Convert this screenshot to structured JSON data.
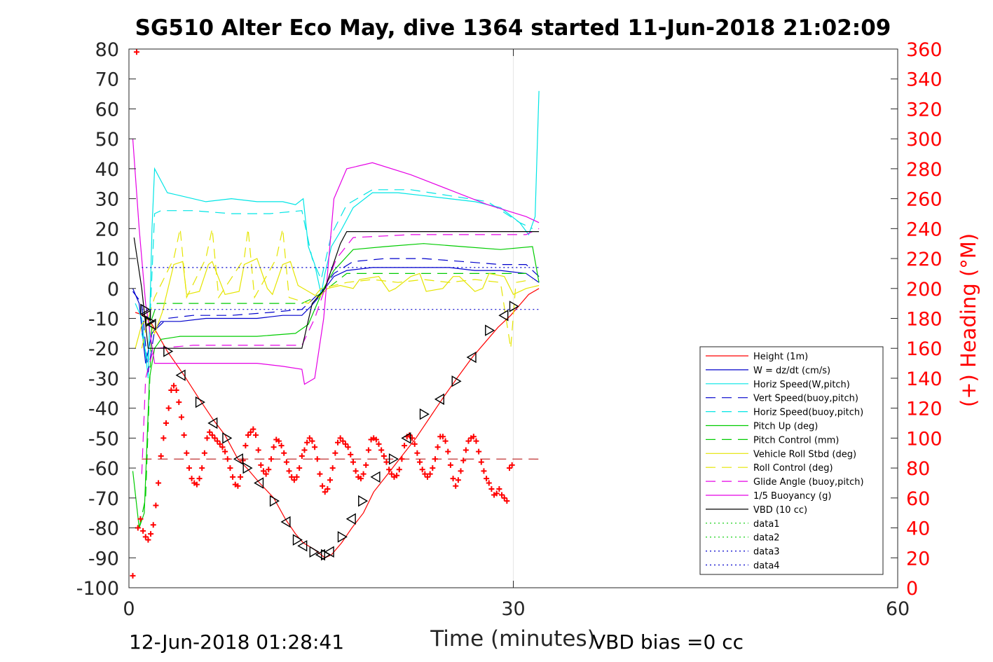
{
  "chart_data": {
    "type": "line",
    "title": "SG510 Alter Eco May, dive 1364 started 11-Jun-2018 21:02:09",
    "xlabel": "Time (minutes)",
    "ylabel": "",
    "y2label": "(+) Heading (°M)",
    "xlim": [
      0,
      60
    ],
    "ylim": [
      -100,
      80
    ],
    "y2lim": [
      0,
      360
    ],
    "xticks": [
      "0",
      "30",
      "60"
    ],
    "yticks": [
      "80",
      "70",
      "60",
      "50",
      "40",
      "30",
      "20",
      "10",
      "0",
      "-10",
      "-20",
      "-30",
      "-40",
      "-50",
      "-60",
      "-70",
      "-80",
      "-90",
      "-100"
    ],
    "y2ticks": [
      "360",
      "340",
      "320",
      "300",
      "280",
      "260",
      "240",
      "220",
      "200",
      "180",
      "160",
      "140",
      "120",
      "100",
      "80",
      "60",
      "40",
      "20",
      "0"
    ],
    "grid": "x-only",
    "legend_position": "lower-right",
    "end_time_text": "12-Jun-2018 01:28:41",
    "vbd_bias_text": "VBD bias =0 cc",
    "series": [
      {
        "name": "Height (1m)",
        "color": "#ff0000",
        "style": "solid",
        "x": [
          0.5,
          1.2,
          1.8,
          3,
          4.3,
          5.5,
          6.6,
          7.5,
          8.5,
          9.2,
          10.2,
          11.3,
          12.2,
          13,
          13.6,
          14.4,
          15,
          15.3,
          15.8,
          16.6,
          17.4,
          18.3,
          19.1,
          20.2,
          21.3,
          22.4,
          23.5,
          24.6,
          25.6,
          26.8,
          27.8,
          28.8,
          29.8,
          30.4,
          31.2,
          32
        ],
        "y": [
          -8,
          -9,
          -12,
          -21,
          -29,
          -37,
          -44,
          -49,
          -57,
          -60,
          -65,
          -70,
          -77,
          -82,
          -85,
          -87,
          -89,
          -90,
          -89,
          -85,
          -80,
          -75,
          -68,
          -62,
          -56,
          -50,
          -43,
          -36,
          -30,
          -23,
          -18,
          -13,
          -9,
          -6,
          -2,
          0
        ]
      },
      {
        "name": "W = dz/dt (cm/s)",
        "color": "#0000cc",
        "style": "solid",
        "x": [
          0.3,
          0.8,
          1.3,
          1.8,
          2.5,
          4,
          6,
          8,
          10,
          12,
          13.5,
          14.2,
          14.8,
          15.3,
          16,
          17,
          19,
          21,
          23,
          25,
          27,
          29,
          31,
          32
        ],
        "y": [
          0,
          -5,
          -25,
          -15,
          -11,
          -11,
          -10,
          -10,
          -10,
          -9,
          -9,
          -6,
          -3,
          0,
          4,
          6,
          7,
          7,
          7,
          7,
          6,
          6,
          5,
          2
        ]
      },
      {
        "name": "Horiz Speed(W,pitch)",
        "color": "#00e5e5",
        "style": "solid",
        "x": [
          0.5,
          1,
          1.5,
          1.8,
          2,
          2.5,
          3,
          4,
          6,
          8,
          10,
          12,
          13,
          13.6,
          14,
          14.5,
          15,
          15.3,
          15.8,
          16.5,
          17.5,
          19,
          21,
          23,
          25,
          27,
          29,
          30.5,
          31.2,
          31.7,
          32
        ],
        "y": [
          -5,
          -10,
          -30,
          20,
          40,
          36,
          32,
          31,
          29,
          30,
          29,
          29,
          28,
          30,
          14,
          8,
          -2,
          5,
          14,
          19,
          27,
          32,
          32,
          31,
          30,
          29,
          27,
          22,
          18,
          24,
          66
        ]
      },
      {
        "name": "Vert Speed(buoy,pitch)",
        "color": "#0000cc",
        "style": "dashed",
        "x": [
          0.3,
          1,
          1.5,
          2,
          3,
          5,
          8,
          11,
          13.5,
          14.5,
          15.2,
          16,
          17.5,
          20,
          23,
          26,
          29,
          31,
          32
        ],
        "y": [
          -1,
          -5,
          -28,
          -14,
          -10,
          -9,
          -9,
          -8,
          -7,
          -3,
          0,
          5,
          9,
          10,
          10,
          9,
          8,
          8,
          4
        ]
      },
      {
        "name": "Horiz Speed(buoy,pitch)",
        "color": "#00e5e5",
        "style": "dashed",
        "x": [
          1,
          1.5,
          2,
          2.5,
          5,
          8,
          11,
          13.5,
          14.3,
          15,
          15.8,
          17,
          19,
          22,
          25,
          28,
          30.5,
          31.5
        ],
        "y": [
          -15,
          -25,
          25,
          26,
          26,
          25,
          25,
          26,
          10,
          3,
          18,
          28,
          33,
          33,
          31,
          29,
          22,
          20
        ]
      },
      {
        "name": "Pitch Up (deg)",
        "color": "#00cc00",
        "style": "solid",
        "x": [
          0.3,
          0.8,
          1.2,
          1.6,
          2,
          2.5,
          4,
          7,
          10,
          13,
          14,
          14.6,
          15.2,
          16,
          17.5,
          20,
          23,
          26,
          29,
          31.5,
          32
        ],
        "y": [
          -61,
          -80,
          -75,
          -30,
          -20,
          -17,
          -16,
          -16,
          -16,
          -15,
          -12,
          -6,
          0,
          6,
          13,
          14,
          15,
          14,
          13,
          14,
          2
        ]
      },
      {
        "name": "Pitch Control (mm)",
        "color": "#00cc00",
        "style": "dashed",
        "x": [
          0.8,
          1.3,
          1.8,
          2.2,
          5,
          10,
          13.5,
          14.5,
          15.5,
          17,
          22,
          27,
          31
        ],
        "y": [
          -80,
          -70,
          -10,
          -5,
          -5,
          -5,
          -5,
          -3,
          0,
          5,
          5,
          5,
          5
        ]
      },
      {
        "name": "Vehicle Roll Stbd (deg)",
        "color": "#e5e500",
        "style": "solid",
        "x": [
          0.5,
          1,
          1.5,
          2,
          2.6,
          3.5,
          4.2,
          4.5,
          5.5,
          6.2,
          6.5,
          7.5,
          8.6,
          9,
          10,
          10.8,
          11.2,
          12,
          12.6,
          13.2,
          14,
          14.8,
          15.5,
          16.5,
          17.5,
          18,
          19.5,
          20.3,
          20.8,
          22,
          22.7,
          23.2,
          24.5,
          25.3,
          25.8,
          27,
          27.6,
          28.1,
          29.3,
          30,
          31,
          32
        ],
        "y": [
          -20,
          -12,
          -10,
          -15,
          -8,
          8,
          9,
          -2,
          -1,
          8,
          9,
          -2,
          -1,
          8,
          10,
          0,
          -2,
          8,
          9,
          1,
          -1,
          -3,
          0,
          1,
          0,
          3,
          4,
          -1,
          0,
          4,
          5,
          -1,
          0,
          4,
          4,
          -1,
          0,
          5,
          4,
          -2,
          0,
          1
        ]
      },
      {
        "name": "Roll Control (deg)",
        "color": "#e5e500",
        "style": "dashed",
        "x": [
          1,
          1.5,
          2,
          3.5,
          4,
          4.5,
          6,
          6.5,
          7,
          9,
          9.3,
          9.8,
          11.5,
          12,
          12.5,
          14,
          15,
          17,
          19,
          21,
          23,
          25,
          27,
          29,
          29.8,
          30.2,
          31.5
        ],
        "y": [
          -20,
          -10,
          -3,
          10,
          20,
          -3,
          10,
          20,
          -3,
          10,
          20,
          -3,
          10,
          20,
          -3,
          -5,
          0,
          2,
          3,
          2,
          3,
          2,
          3,
          2,
          -20,
          2,
          3
        ]
      },
      {
        "name": "Glide Angle (buoy,pitch)",
        "color": "#e500e5",
        "style": "dashed",
        "x": [
          1,
          1.3,
          1.8,
          2.2,
          5,
          10,
          13.5,
          14.5,
          15.3,
          16.2,
          17.5,
          22,
          27,
          31,
          32
        ],
        "y": [
          -62,
          -30,
          -22,
          -20,
          -19,
          -19,
          -19,
          -10,
          0,
          10,
          17,
          18,
          18,
          18,
          20
        ]
      },
      {
        "name": "1/5 Buoyancy (g)",
        "color": "#e500e5",
        "style": "solid",
        "x": [
          0.3,
          0.8,
          1.3,
          2,
          3,
          6,
          10,
          12,
          13.5,
          13.7,
          14.5,
          15.2,
          16,
          17,
          19,
          22,
          25,
          28,
          31,
          32
        ],
        "y": [
          50,
          20,
          -5,
          -25,
          -25,
          -25,
          -25,
          -26,
          -27,
          -32,
          -30,
          -10,
          30,
          40,
          42,
          38,
          33,
          28,
          24,
          22
        ]
      },
      {
        "name": "VBD (10 cc)",
        "color": "#000000",
        "style": "solid",
        "x": [
          0.4,
          1,
          1.5,
          2.2,
          13.5,
          14.3,
          15.3,
          16.5,
          17,
          31.5,
          32
        ],
        "y": [
          17,
          0,
          -20,
          -20,
          -20,
          -5,
          0,
          15,
          19,
          19,
          19
        ]
      },
      {
        "name": "data1",
        "color": "#00cc00",
        "style": "dotted",
        "x": [],
        "y": []
      },
      {
        "name": "data2",
        "color": "#00cc00",
        "style": "dotted",
        "x": [],
        "y": []
      },
      {
        "name": "data3",
        "color": "#0000cc",
        "style": "dotted",
        "x": [
          1,
          32
        ],
        "y": [
          7,
          7
        ]
      },
      {
        "name": "data4",
        "color": "#0000cc",
        "style": "dotted",
        "x": [
          1,
          32
        ],
        "y": [
          -7,
          -7
        ]
      }
    ],
    "heading_marker": {
      "color": "#ff0000",
      "dashed_line_y2": 86,
      "dashed_line_x": [
        1,
        32
      ]
    },
    "heading_points": {
      "x": [
        0.3,
        0.6,
        0.7,
        0.9,
        1.1,
        1.3,
        1.5,
        1.7,
        1.9,
        2.1,
        2.3,
        2.5,
        2.7,
        2.9,
        3.1,
        3.3,
        3.5,
        3.7,
        3.9,
        4.1,
        4.3,
        4.5,
        4.7,
        4.9,
        5.1,
        5.3,
        5.5,
        5.7,
        5.9,
        6.1,
        6.3,
        6.5,
        6.7,
        6.9,
        7.1,
        7.3,
        7.5,
        7.7,
        7.9,
        8.1,
        8.3,
        8.5,
        8.7,
        8.9,
        9.1,
        9.3,
        9.5,
        9.7,
        9.9,
        10.1,
        10.3,
        10.5,
        10.7,
        10.9,
        11.1,
        11.3,
        11.5,
        11.7,
        11.9,
        12.1,
        12.3,
        12.5,
        12.7,
        12.9,
        13.1,
        13.3,
        13.5,
        13.7,
        13.9,
        14.1,
        14.3,
        14.5,
        14.7,
        14.9,
        15.1,
        15.3,
        15.5,
        15.7,
        15.9,
        16.1,
        16.3,
        16.5,
        16.7,
        16.9,
        17.1,
        17.3,
        17.5,
        17.7,
        17.9,
        18.1,
        18.3,
        18.5,
        18.7,
        18.9,
        19.1,
        19.3,
        19.5,
        19.7,
        19.9,
        20.1,
        20.3,
        20.5,
        20.7,
        20.9,
        21.1,
        21.3,
        21.5,
        21.7,
        21.9,
        22.1,
        22.3,
        22.5,
        22.7,
        22.9,
        23.1,
        23.3,
        23.5,
        23.7,
        23.9,
        24.1,
        24.3,
        24.5,
        24.7,
        24.9,
        25.1,
        25.3,
        25.5,
        25.7,
        25.9,
        26.1,
        26.3,
        26.5,
        26.7,
        26.9,
        27.1,
        27.3,
        27.5,
        27.7,
        27.9,
        28.1,
        28.3,
        28.5,
        28.7,
        28.9,
        29.1,
        29.3,
        29.5,
        29.7,
        29.9,
        30.1,
        30.3,
        30.5,
        30.7,
        30.9,
        31.1,
        31.3,
        31.5,
        31.7
      ],
      "y2": [
        8,
        358,
        40,
        46,
        38,
        34,
        32,
        36,
        42,
        55,
        70,
        88,
        100,
        110,
        120,
        132,
        135,
        132,
        124,
        114,
        102,
        90,
        80,
        73,
        70,
        69,
        73,
        80,
        90,
        100,
        104,
        102,
        100,
        98,
        96,
        94,
        91,
        86,
        80,
        74,
        69,
        68,
        74,
        85,
        95,
        102,
        104,
        106,
        102,
        92,
        82,
        78,
        76,
        79,
        86,
        94,
        99,
        98,
        95,
        90,
        84,
        78,
        74,
        72,
        74,
        80,
        88,
        92,
        97,
        100,
        98,
        94,
        86,
        76,
        68,
        64,
        66,
        72,
        80,
        90,
        97,
        100,
        98,
        96,
        94,
        89,
        84,
        78,
        74,
        73,
        76,
        82,
        92,
        99,
        100,
        99,
        96,
        92,
        88,
        84,
        79,
        76,
        74,
        75,
        79,
        86,
        95,
        101,
        102,
        100,
        96,
        90,
        84,
        79,
        76,
        74,
        76,
        80,
        86,
        94,
        101,
        101,
        98,
        91,
        82,
        73,
        68,
        72,
        78,
        85,
        92,
        98,
        100,
        101,
        98,
        91,
        84,
        78,
        73,
        70,
        66,
        62,
        63,
        66,
        62,
        60,
        58,
        80,
        82
      ]
    },
    "triangle_markers": {
      "x": [
        1.2,
        1.4,
        1.6,
        1.8,
        3,
        4.1,
        5.5,
        6.6,
        7.6,
        8.6,
        9.2,
        10.2,
        11.3,
        12.3,
        13.1,
        13.6,
        14.4,
        15,
        15.3,
        15.7,
        16.6,
        17.4,
        18.2,
        19.3,
        20.6,
        21.7,
        23,
        24.3,
        25.5,
        26.8,
        28.1,
        29.3,
        30
      ],
      "y": [
        -7,
        -9,
        -11,
        -12,
        -21,
        -29,
        -38,
        -45,
        -50,
        -57,
        -60,
        -65,
        -71,
        -78,
        -84,
        -86,
        -88,
        -89,
        -89,
        -88,
        -83,
        -77,
        -71,
        -63,
        -57,
        -50,
        -42,
        -37,
        -31,
        -23,
        -14,
        -9,
        -6
      ]
    }
  },
  "legend": [
    {
      "label": "Height (1m)",
      "color": "#ff0000",
      "style": "solid"
    },
    {
      "label": "W = dz/dt (cm/s)",
      "color": "#0000cc",
      "style": "solid"
    },
    {
      "label": "Horiz Speed(W,pitch)",
      "color": "#00e5e5",
      "style": "solid"
    },
    {
      "label": "Vert Speed(buoy,pitch)",
      "color": "#0000cc",
      "style": "dashed"
    },
    {
      "label": "Horiz Speed(buoy,pitch)",
      "color": "#00e5e5",
      "style": "dashed"
    },
    {
      "label": "Pitch Up (deg)",
      "color": "#00cc00",
      "style": "solid"
    },
    {
      "label": "Pitch Control (mm)",
      "color": "#00cc00",
      "style": "dashed"
    },
    {
      "label": "Vehicle Roll Stbd (deg)",
      "color": "#e5e500",
      "style": "solid"
    },
    {
      "label": "Roll Control (deg)",
      "color": "#e5e500",
      "style": "dashed"
    },
    {
      "label": "Glide Angle (buoy,pitch)",
      "color": "#e500e5",
      "style": "dashed"
    },
    {
      "label": "1/5 Buoyancy (g)",
      "color": "#e500e5",
      "style": "solid"
    },
    {
      "label": "VBD (10 cc)",
      "color": "#000000",
      "style": "solid"
    },
    {
      "label": "data1",
      "color": "#00cc00",
      "style": "dotted"
    },
    {
      "label": "data2",
      "color": "#00cc00",
      "style": "dotted"
    },
    {
      "label": "data3",
      "color": "#0000cc",
      "style": "dotted"
    },
    {
      "label": "data4",
      "color": "#0000cc",
      "style": "dotted"
    }
  ]
}
